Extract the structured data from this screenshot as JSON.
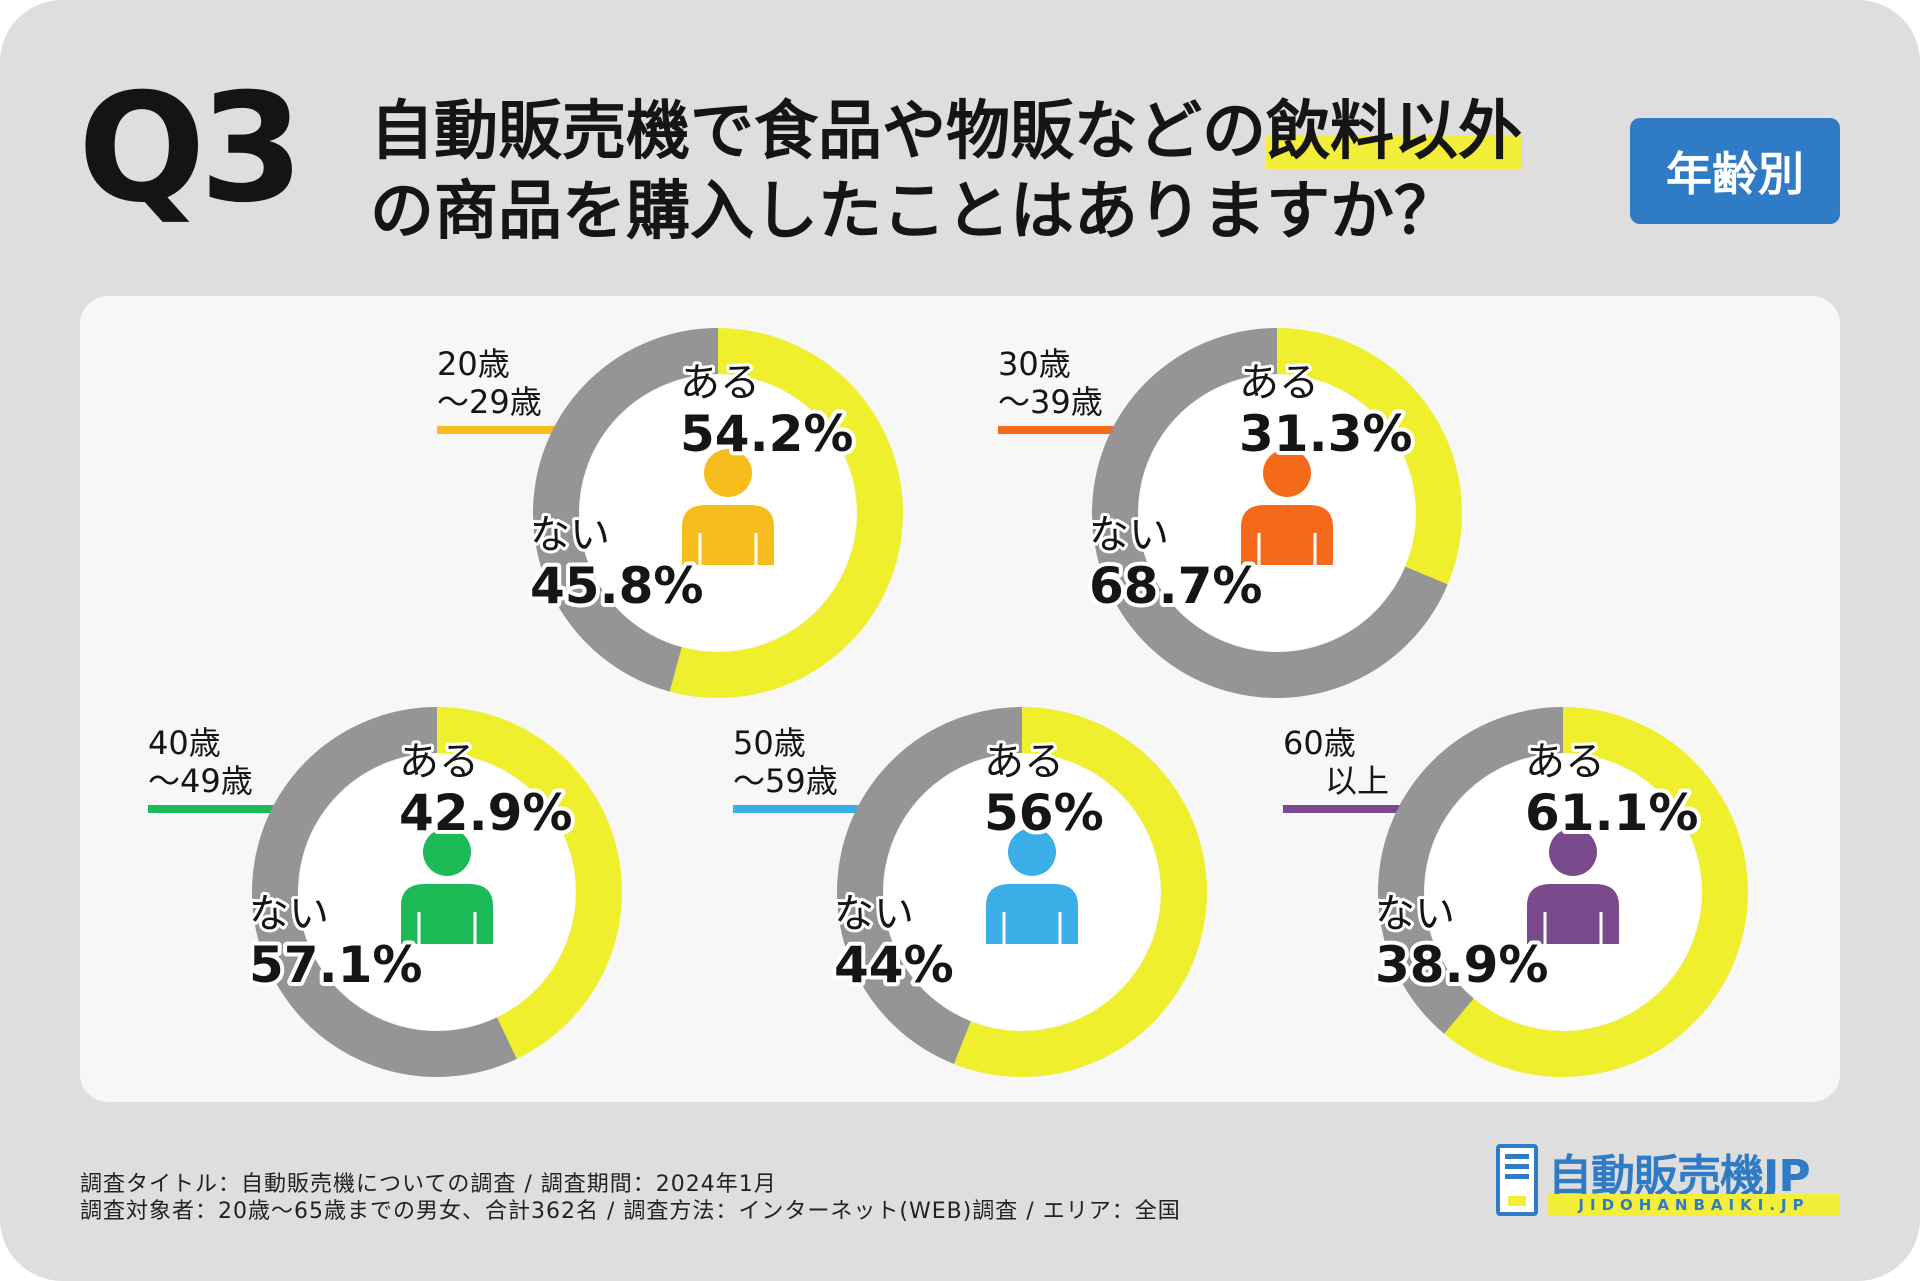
{
  "header": {
    "q_label": "Q3",
    "title_line1_main": "自動販売機で食品や物販などの",
    "title_line1_highlight": "飲料以外",
    "title_line2": "の商品を購入したことはありますか？",
    "badge": "年齢別"
  },
  "colors": {
    "yes": "#f0ef2e",
    "no": "#959595",
    "badge": "#2f7bc6",
    "highlight": "#f2ee3a"
  },
  "chart_data": [
    {
      "type": "pie",
      "group_line1": "20歳",
      "group_line2": "～29歳",
      "color": "#f6bd1c",
      "yes_label": "ある",
      "yes_value": 54.2,
      "yes_text": "54.2%",
      "no_label": "ない",
      "no_value": 45.8,
      "no_text": "45.8%"
    },
    {
      "type": "pie",
      "group_line1": "30歳",
      "group_line2": "～39歳",
      "color": "#f56a1a",
      "yes_label": "ある",
      "yes_value": 31.3,
      "yes_text": "31.3%",
      "no_label": "ない",
      "no_value": 68.7,
      "no_text": "68.7%"
    },
    {
      "type": "pie",
      "group_line1": "40歳",
      "group_line2": "～49歳",
      "color": "#1dba58",
      "yes_label": "ある",
      "yes_value": 42.9,
      "yes_text": "42.9%",
      "no_label": "ない",
      "no_value": 57.1,
      "no_text": "57.1%"
    },
    {
      "type": "pie",
      "group_line1": "50歳",
      "group_line2": "～59歳",
      "color": "#3aaee6",
      "yes_label": "ある",
      "yes_value": 56,
      "yes_text": "56%",
      "no_label": "ない",
      "no_value": 44,
      "no_text": "44%"
    },
    {
      "type": "pie",
      "group_line1": "60歳",
      "group_line2": "以上",
      "color": "#7a4a8c",
      "yes_label": "ある",
      "yes_value": 61.1,
      "yes_text": "61.1%",
      "no_label": "ない",
      "no_value": 38.9,
      "no_text": "38.9%"
    }
  ],
  "footer": {
    "line1": "調査タイトル：自動販売機についての調査 / 調査期間：2024年1月",
    "line2": "調査対象者：20歳～65歳までの男女、合計362名 / 調査方法：インターネット(WEB)調査 / エリア：全国"
  },
  "logo": {
    "name": "自動販売機JP",
    "sub": "JIDOHANBAIKI.JP"
  }
}
